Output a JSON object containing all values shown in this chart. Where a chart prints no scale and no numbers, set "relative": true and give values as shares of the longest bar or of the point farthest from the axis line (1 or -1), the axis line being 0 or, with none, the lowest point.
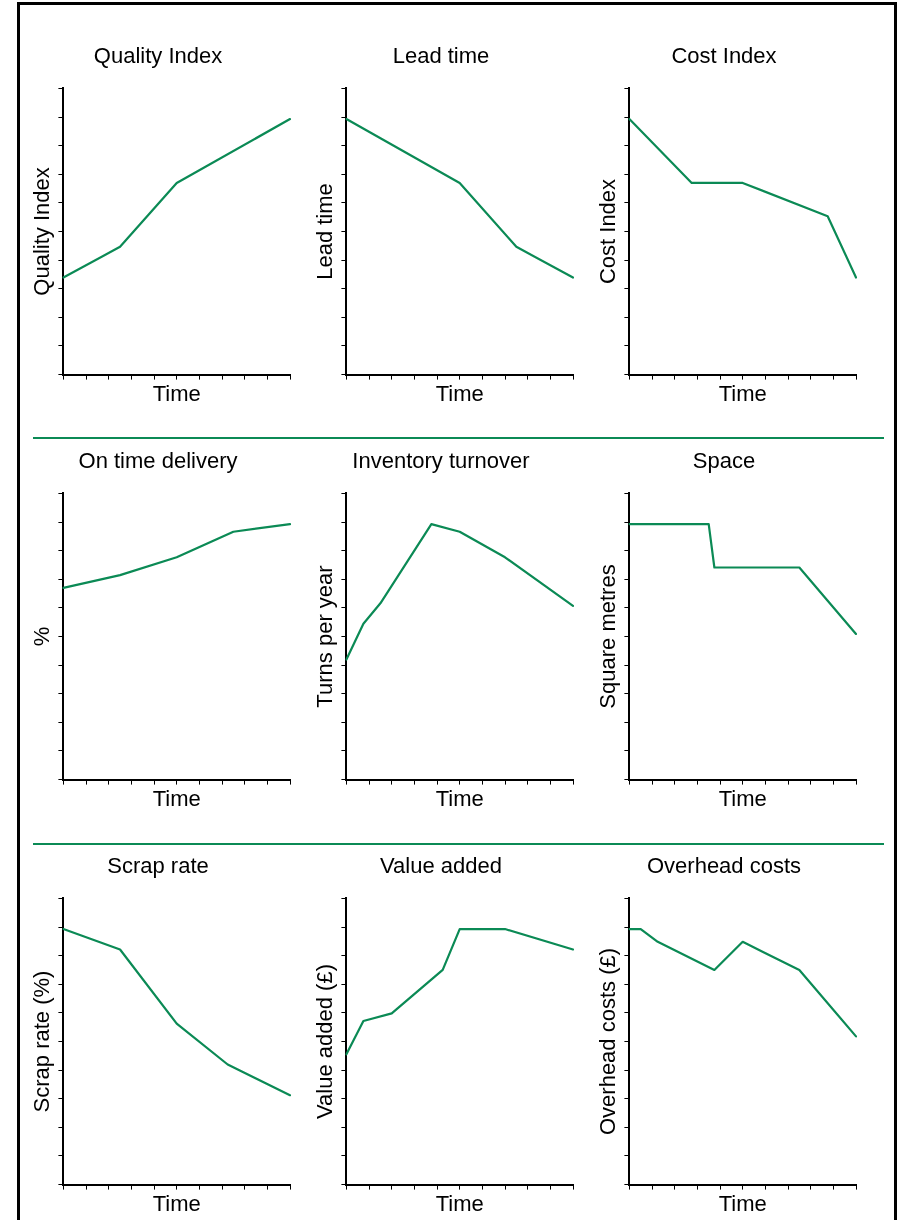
{
  "chart_data": [
    {
      "type": "line",
      "title": "Quality Index",
      "xlabel": "Time",
      "ylabel": "Quality Index",
      "relative": true,
      "tick_labels": false,
      "color": "#0b8a55",
      "categories": [
        null,
        null,
        null,
        null,
        null,
        null,
        null,
        null,
        null,
        null,
        null,
        null,
        null,
        null,
        null,
        null,
        null,
        null,
        null,
        null,
        null,
        null,
        null,
        null,
        null,
        null,
        null,
        null,
        null,
        null,
        null,
        null,
        null,
        null,
        null,
        null,
        null,
        null,
        null,
        null,
        null
      ],
      "values": [
        0.38,
        null,
        null,
        null,
        null,
        null,
        null,
        null,
        null,
        null,
        0.5,
        null,
        null,
        null,
        null,
        null,
        null,
        null,
        null,
        null,
        0.75,
        null,
        null,
        null,
        null,
        null,
        null,
        null,
        null,
        null,
        null,
        null,
        null,
        null,
        null,
        null,
        null,
        null,
        null,
        null,
        1
      ]
    },
    {
      "type": "line",
      "title": "Lead time",
      "xlabel": "Time",
      "ylabel": "Lead time",
      "relative": true,
      "tick_labels": false,
      "color": "#0b8a55",
      "categories": [
        null,
        null,
        null,
        null,
        null,
        null,
        null,
        null,
        null,
        null,
        null,
        null,
        null,
        null,
        null,
        null,
        null,
        null,
        null,
        null,
        null,
        null,
        null,
        null,
        null,
        null,
        null,
        null,
        null,
        null,
        null,
        null,
        null,
        null,
        null,
        null,
        null,
        null,
        null,
        null,
        null
      ],
      "values": [
        1,
        null,
        null,
        null,
        null,
        null,
        null,
        null,
        null,
        null,
        null,
        null,
        null,
        null,
        null,
        null,
        null,
        null,
        null,
        null,
        0.75,
        null,
        null,
        null,
        null,
        null,
        null,
        null,
        null,
        null,
        0.5,
        null,
        null,
        null,
        null,
        null,
        null,
        null,
        null,
        null,
        0.38
      ]
    },
    {
      "type": "line",
      "title": "Cost Index",
      "xlabel": "Time",
      "ylabel": "Cost Index",
      "relative": true,
      "tick_labels": false,
      "color": "#0b8a55",
      "categories": [
        null,
        null,
        null,
        null,
        null,
        null,
        null,
        null,
        null,
        null,
        null,
        null,
        null,
        null,
        null,
        null,
        null,
        null,
        null,
        null,
        null,
        null,
        null,
        null,
        null,
        null,
        null,
        null,
        null,
        null,
        null,
        null,
        null,
        null,
        null,
        null,
        null,
        null,
        null,
        null,
        null
      ],
      "values": [
        1,
        null,
        null,
        null,
        null,
        null,
        null,
        null,
        null,
        null,
        null,
        0.75,
        null,
        null,
        null,
        null,
        null,
        null,
        null,
        null,
        0.75,
        null,
        null,
        null,
        null,
        null,
        null,
        null,
        null,
        null,
        null,
        null,
        null,
        null,
        null,
        0.62,
        null,
        null,
        null,
        null,
        0.38
      ]
    },
    {
      "type": "line",
      "title": "On time delivery",
      "xlabel": "Time",
      "ylabel": "%",
      "relative": true,
      "tick_labels": false,
      "color": "#0b8a55",
      "categories": [
        null,
        null,
        null,
        null,
        null,
        null,
        null,
        null,
        null,
        null,
        null,
        null,
        null,
        null,
        null,
        null,
        null,
        null,
        null,
        null,
        null,
        null,
        null,
        null,
        null,
        null,
        null,
        null,
        null,
        null,
        null,
        null,
        null,
        null,
        null,
        null,
        null,
        null,
        null,
        null,
        null
      ],
      "values": [
        0.75,
        null,
        null,
        null,
        null,
        null,
        null,
        null,
        null,
        null,
        0.8,
        null,
        null,
        null,
        null,
        null,
        null,
        null,
        null,
        null,
        0.87,
        null,
        null,
        null,
        null,
        null,
        null,
        null,
        null,
        null,
        0.97,
        null,
        null,
        null,
        null,
        null,
        null,
        null,
        null,
        null,
        1
      ]
    },
    {
      "type": "line",
      "title": "Inventory turnover",
      "xlabel": "Time",
      "ylabel": "Turns per year",
      "relative": true,
      "tick_labels": false,
      "color": "#0b8a55",
      "categories": [
        null,
        null,
        null,
        null,
        null,
        null,
        null,
        null,
        null,
        null,
        null,
        null,
        null,
        null,
        null,
        null,
        null,
        null,
        null,
        null,
        null,
        null,
        null,
        null,
        null,
        null,
        null,
        null,
        null,
        null,
        null,
        null,
        null,
        null,
        null,
        null,
        null,
        null,
        null,
        null,
        null
      ],
      "values": [
        0.47,
        null,
        null,
        0.61,
        null,
        null,
        0.69,
        null,
        null,
        null,
        null,
        null,
        null,
        null,
        null,
        1,
        null,
        null,
        null,
        null,
        0.97,
        null,
        null,
        null,
        null,
        null,
        null,
        null,
        0.87,
        null,
        null,
        null,
        null,
        null,
        null,
        null,
        null,
        null,
        null,
        null,
        0.68
      ]
    },
    {
      "type": "line",
      "title": "Space",
      "xlabel": "Time",
      "ylabel": "Square metres",
      "relative": true,
      "tick_labels": false,
      "color": "#0b8a55",
      "categories": [
        null,
        null,
        null,
        null,
        null,
        null,
        null,
        null,
        null,
        null,
        null,
        null,
        null,
        null,
        null,
        null,
        null,
        null,
        null,
        null,
        null,
        null,
        null,
        null,
        null,
        null,
        null,
        null,
        null,
        null,
        null,
        null,
        null,
        null,
        null,
        null,
        null,
        null,
        null,
        null,
        null
      ],
      "values": [
        1,
        null,
        null,
        null,
        null,
        null,
        null,
        null,
        null,
        null,
        null,
        null,
        null,
        null,
        1,
        0.83,
        null,
        null,
        null,
        null,
        null,
        null,
        null,
        null,
        null,
        null,
        null,
        null,
        null,
        null,
        0.83,
        null,
        null,
        null,
        null,
        null,
        null,
        null,
        null,
        null,
        0.57
      ]
    },
    {
      "type": "line",
      "title": "Scrap rate",
      "xlabel": "Time",
      "ylabel": "Scrap rate (%)",
      "relative": true,
      "tick_labels": false,
      "color": "#0b8a55",
      "categories": [
        null,
        null,
        null,
        null,
        null,
        null,
        null,
        null,
        null,
        null,
        null,
        null,
        null,
        null,
        null,
        null,
        null,
        null,
        null,
        null,
        null,
        null,
        null,
        null,
        null,
        null,
        null,
        null,
        null,
        null,
        null,
        null,
        null,
        null,
        null,
        null,
        null,
        null,
        null,
        null,
        null
      ],
      "values": [
        1,
        null,
        null,
        null,
        null,
        null,
        null,
        null,
        null,
        null,
        0.92,
        null,
        null,
        null,
        null,
        null,
        null,
        null,
        null,
        null,
        0.63,
        null,
        null,
        null,
        null,
        null,
        null,
        null,
        null,
        0.47,
        null,
        null,
        null,
        null,
        null,
        null,
        null,
        null,
        null,
        null,
        0.35
      ]
    },
    {
      "type": "line",
      "title": "Value added",
      "xlabel": "Time",
      "ylabel": "Value added (£)",
      "relative": true,
      "tick_labels": false,
      "color": "#0b8a55",
      "categories": [
        null,
        null,
        null,
        null,
        null,
        null,
        null,
        null,
        null,
        null,
        null,
        null,
        null,
        null,
        null,
        null,
        null,
        null,
        null,
        null,
        null,
        null,
        null,
        null,
        null,
        null,
        null,
        null,
        null,
        null,
        null,
        null,
        null,
        null,
        null,
        null,
        null,
        null,
        null,
        null,
        null
      ],
      "values": [
        0.51,
        null,
        null,
        0.64,
        null,
        null,
        null,
        null,
        0.67,
        null,
        null,
        null,
        null,
        null,
        null,
        null,
        null,
        0.84,
        null,
        null,
        1,
        null,
        null,
        null,
        null,
        null,
        null,
        null,
        1,
        null,
        null,
        null,
        null,
        null,
        null,
        null,
        null,
        null,
        null,
        null,
        0.92
      ]
    },
    {
      "type": "line",
      "title": "Overhead costs",
      "xlabel": "Time",
      "ylabel": "Overhead costs (£)",
      "relative": true,
      "tick_labels": false,
      "color": "#0b8a55",
      "categories": [
        null,
        null,
        null,
        null,
        null,
        null,
        null,
        null,
        null,
        null,
        null,
        null,
        null,
        null,
        null,
        null,
        null,
        null,
        null,
        null,
        null,
        null,
        null,
        null,
        null,
        null,
        null,
        null,
        null,
        null,
        null,
        null,
        null,
        null,
        null,
        null,
        null,
        null,
        null,
        null,
        null
      ],
      "values": [
        1,
        null,
        1,
        null,
        null,
        0.95,
        null,
        null,
        null,
        null,
        null,
        null,
        null,
        null,
        null,
        0.84,
        null,
        null,
        null,
        null,
        0.95,
        null,
        null,
        null,
        null,
        null,
        null,
        null,
        null,
        null,
        0.84,
        null,
        null,
        null,
        null,
        null,
        null,
        null,
        null,
        null,
        0.58
      ]
    }
  ]
}
